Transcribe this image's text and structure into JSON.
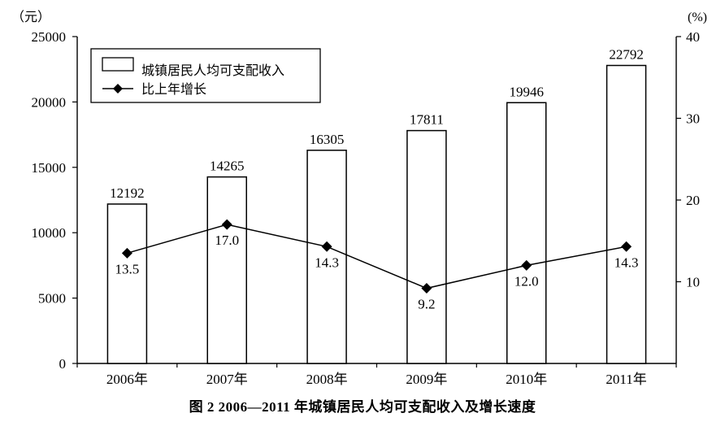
{
  "caption": "图 2  2006—2011 年城镇居民人均可支配收入及增长速度",
  "chart_data": {
    "type": "bar",
    "subtype": "bar-with-line-overlay",
    "categories": [
      "2006年",
      "2007年",
      "2008年",
      "2009年",
      "2010年",
      "2011年"
    ],
    "series": [
      {
        "name": "城镇居民人均可支配收入",
        "type": "bar",
        "axis": "left",
        "values": [
          12192,
          14265,
          16305,
          17811,
          19946,
          22792
        ]
      },
      {
        "name": "比上年增长",
        "type": "line",
        "axis": "right",
        "marker": "diamond",
        "values": [
          13.5,
          17.0,
          14.3,
          9.2,
          12.0,
          14.3
        ]
      }
    ],
    "left_axis": {
      "unit": "（元）",
      "min": 0,
      "max": 25000,
      "ticks": [
        0,
        5000,
        10000,
        15000,
        20000,
        25000
      ]
    },
    "right_axis": {
      "unit": "(%)",
      "min": 0,
      "max": 40,
      "ticks": [
        10,
        20,
        30,
        40
      ]
    },
    "legend": {
      "position": "top-left"
    },
    "grid": false,
    "colors": {
      "ink": "#000000",
      "bar_fill": "#ffffff",
      "background": "#ffffff"
    }
  }
}
